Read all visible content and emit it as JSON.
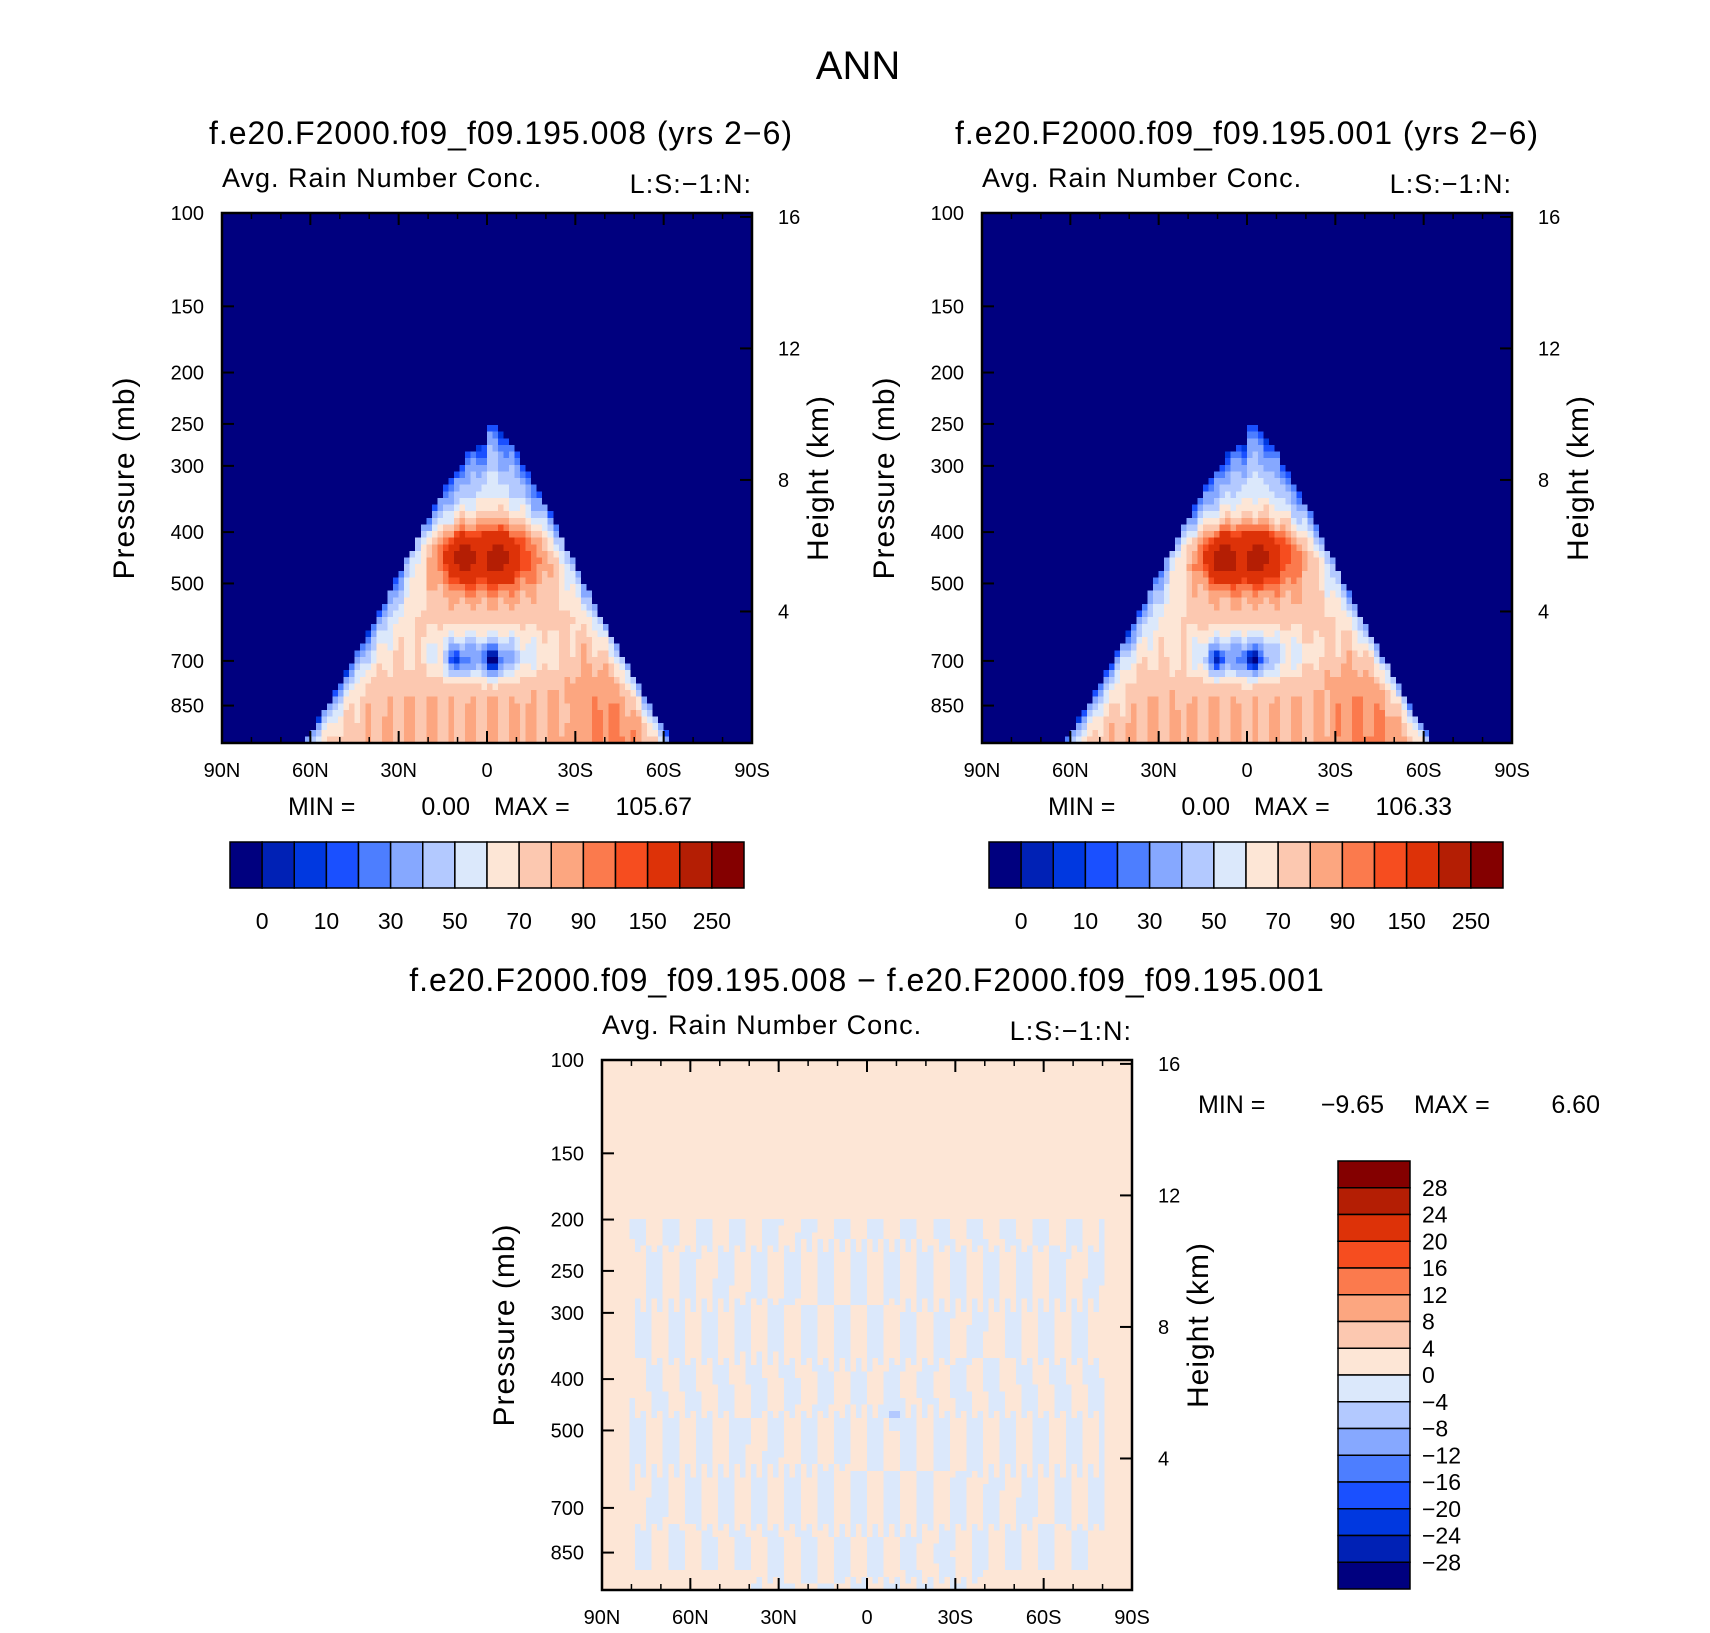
{
  "figure": {
    "title": "ANN"
  },
  "chart_data": [
    {
      "type": "heatmap",
      "panel": "top-left",
      "title": "f.e20.F2000.f09_f09.195.008 (yrs 2-6)",
      "variable_label": "Avg. Rain Number Conc.",
      "level_label": "L:S:-1:N:",
      "xlabel": "",
      "ylabel": "Pressure (mb)",
      "y2label": "Height (km)",
      "x_ticks": [
        "90N",
        "60N",
        "30N",
        "0",
        "30S",
        "60S",
        "90S"
      ],
      "y_ticks": [
        100,
        150,
        200,
        250,
        300,
        400,
        500,
        700,
        850
      ],
      "y2_ticks": [
        16,
        12,
        8,
        4
      ],
      "ylim": [
        100,
        1000
      ],
      "min_label": "MIN =",
      "min_value": "0.00",
      "max_label": "MAX =",
      "max_value": "105.67",
      "levels": [
        "0",
        "10",
        "30",
        "50",
        "70",
        "90",
        "150",
        "250"
      ],
      "colors": [
        "#00007f",
        "#0021b5",
        "#0038e0",
        "#1a50ff",
        "#4d7eff",
        "#86a8ff",
        "#b3c9ff",
        "#dbe8fb",
        "#fde6d6",
        "#fcc8b0",
        "#fca680",
        "#fb7a4d",
        "#f64d1f",
        "#dd3208",
        "#b41e04",
        "#840000"
      ]
    },
    {
      "type": "heatmap",
      "panel": "top-right",
      "title": "f.e20.F2000.f09_f09.195.001 (yrs 2-6)",
      "variable_label": "Avg. Rain Number Conc.",
      "level_label": "L:S:-1:N:",
      "xlabel": "",
      "ylabel": "Pressure (mb)",
      "y2label": "Height (km)",
      "x_ticks": [
        "90N",
        "60N",
        "30N",
        "0",
        "30S",
        "60S",
        "90S"
      ],
      "y_ticks": [
        100,
        150,
        200,
        250,
        300,
        400,
        500,
        700,
        850
      ],
      "y2_ticks": [
        16,
        12,
        8,
        4
      ],
      "ylim": [
        100,
        1000
      ],
      "min_label": "MIN =",
      "min_value": "0.00",
      "max_label": "MAX =",
      "max_value": "106.33",
      "levels": [
        "0",
        "10",
        "30",
        "50",
        "70",
        "90",
        "150",
        "250"
      ],
      "colors": [
        "#00007f",
        "#0021b5",
        "#0038e0",
        "#1a50ff",
        "#4d7eff",
        "#86a8ff",
        "#b3c9ff",
        "#dbe8fb",
        "#fde6d6",
        "#fcc8b0",
        "#fca680",
        "#fb7a4d",
        "#f64d1f",
        "#dd3208",
        "#b41e04",
        "#840000"
      ]
    },
    {
      "type": "heatmap",
      "panel": "bottom",
      "title": "f.e20.F2000.f09_f09.195.008 - f.e20.F2000.f09_f09.195.001",
      "variable_label": "Avg. Rain Number Conc.",
      "level_label": "L:S:-1:N:",
      "xlabel": "",
      "ylabel": "Pressure (mb)",
      "y2label": "Height (km)",
      "x_ticks": [
        "90N",
        "60N",
        "30N",
        "0",
        "30S",
        "60S",
        "90S"
      ],
      "y_ticks": [
        100,
        150,
        200,
        250,
        300,
        400,
        500,
        700,
        850
      ],
      "y2_ticks": [
        16,
        12,
        8,
        4
      ],
      "ylim": [
        100,
        1000
      ],
      "min_label": "MIN =",
      "min_value": "-9.65",
      "max_label": "MAX =",
      "max_value": "6.60",
      "levels": [
        "28",
        "24",
        "20",
        "16",
        "12",
        "8",
        "4",
        "0",
        "-4",
        "-8",
        "-12",
        "-16",
        "-20",
        "-24",
        "-28"
      ],
      "colors": [
        "#840000",
        "#b41e04",
        "#dd3208",
        "#f64d1f",
        "#fb7a4d",
        "#fca680",
        "#fcc8b0",
        "#fde6d6",
        "#dbe8fb",
        "#b3c9ff",
        "#86a8ff",
        "#4d7eff",
        "#1a50ff",
        "#0038e0",
        "#0021b5",
        "#00007f"
      ]
    }
  ]
}
